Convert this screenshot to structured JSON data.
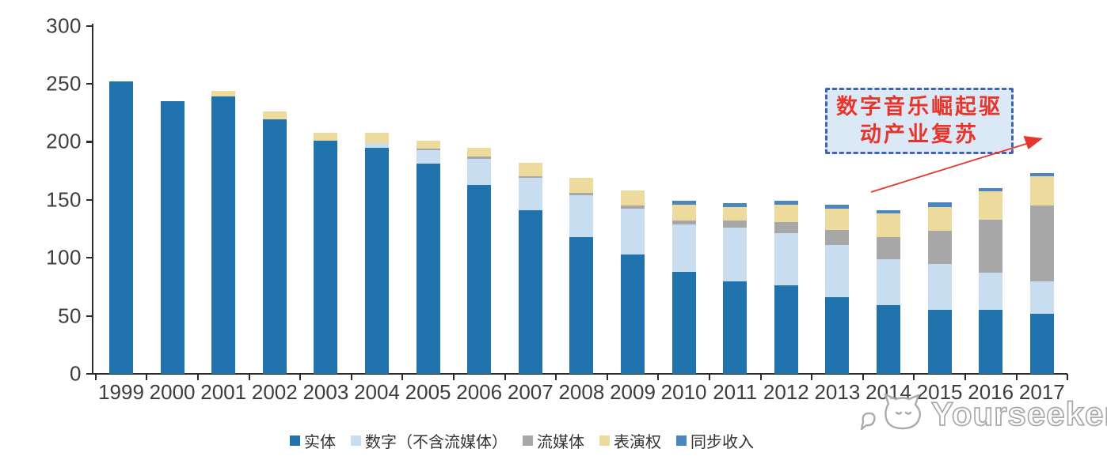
{
  "watermark": {
    "text": "Yourseeker"
  },
  "annotation": {
    "line1": "数字音乐崛起驱",
    "line2": "动产业复苏",
    "text_color": "#e8352b",
    "box_fill": "#dbe8f6",
    "box_border": "#4064ae"
  },
  "chart_data": {
    "type": "bar",
    "stacked": true,
    "title": "",
    "xlabel": "",
    "ylabel": "",
    "ylim": [
      0,
      300
    ],
    "y_ticks": [
      0,
      50,
      100,
      150,
      200,
      250,
      300
    ],
    "grid": false,
    "legend_position": "bottom",
    "categories": [
      "1999",
      "2000",
      "2001",
      "2002",
      "2003",
      "2004",
      "2005",
      "2006",
      "2007",
      "2008",
      "2009",
      "2010",
      "2011",
      "2012",
      "2013",
      "2014",
      "2015",
      "2016",
      "2017"
    ],
    "series": [
      {
        "name": "实体",
        "color": "#2173ae",
        "values": [
          252,
          235,
          239,
          219,
          201,
          195,
          181,
          163,
          141,
          118,
          103,
          88,
          80,
          76,
          66,
          59,
          55,
          55,
          52
        ]
      },
      {
        "name": "数字（不含流媒体）",
        "color": "#c9ddf1",
        "values": [
          0,
          0,
          0,
          0,
          0,
          4,
          12,
          22,
          28,
          36,
          39,
          41,
          46,
          45,
          45,
          40,
          40,
          32,
          28
        ]
      },
      {
        "name": "流媒体",
        "color": "#a7a7a7",
        "values": [
          0,
          0,
          0,
          0,
          0,
          0,
          1,
          2,
          1,
          2,
          3,
          3,
          6,
          10,
          13,
          19,
          28,
          46,
          65
        ]
      },
      {
        "name": "表演权",
        "color": "#eddA9d",
        "values": [
          0,
          0,
          5,
          7,
          7,
          9,
          7,
          8,
          12,
          13,
          13,
          14,
          12,
          15,
          18,
          20,
          21,
          24,
          25
        ]
      },
      {
        "name": "同步收入",
        "color": "#4c86c2",
        "values": [
          0,
          0,
          0,
          0,
          0,
          0,
          0,
          0,
          0,
          0,
          0,
          3,
          3,
          3,
          4,
          3,
          4,
          3,
          3
        ]
      }
    ]
  }
}
